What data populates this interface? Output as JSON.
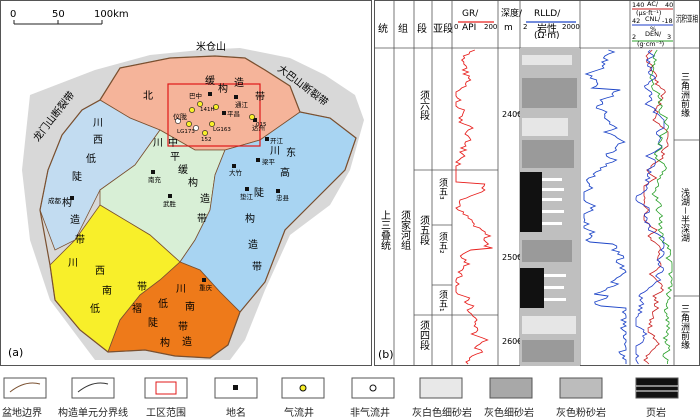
{
  "map": {
    "panel_label": "(a)",
    "scale": {
      "ticks": [
        "0",
        "50",
        "100km"
      ]
    },
    "regions": {
      "north": [
        "北",
        "缓",
        "构",
        "造",
        "带"
      ],
      "west": [
        "川",
        "西",
        "低",
        "陡",
        "构",
        "造",
        "带"
      ],
      "center": [
        "川",
        "中",
        "平",
        "缓",
        "构",
        "造",
        "带"
      ],
      "east": [
        "川",
        "东",
        "高",
        "陡",
        "构",
        "造",
        "带"
      ],
      "southwest": [
        "川",
        "西",
        "南",
        "低",
        "褶",
        "带"
      ],
      "south": [
        "川",
        "南",
        "低",
        "陡",
        "构",
        "造",
        "带"
      ]
    },
    "mountains": {
      "micang": "米仓山",
      "longmen": "龙门山断裂带",
      "daba": "大巴山断裂带"
    },
    "cities": [
      "巴中",
      "通江",
      "平昌",
      "达州",
      "开江",
      "梁平",
      "大竹",
      "垫江",
      "忠县",
      "南充",
      "武胜",
      "成都",
      "重庆"
    ],
    "wells": [
      "仪陇",
      "LG173",
      "141H",
      "LG163",
      "152",
      "015"
    ]
  },
  "log": {
    "panel_label": "(b)",
    "headers": {
      "system": "统",
      "group": "组",
      "member": "段",
      "submember": "亚段",
      "gr_title": "GR/",
      "gr_unit": "API",
      "gr_min": "0",
      "gr_max": "200",
      "depth_title": "深度/",
      "depth_unit": "m",
      "lithology": "岩性",
      "rlld_title": "RLLD/",
      "rlld_unit": "(Ω·m)",
      "rlld_min": "2",
      "rlld_max": "2000",
      "ac_title": "AC/",
      "ac_unit": "(μs·ft⁻¹)",
      "ac_min": "140",
      "ac_max": "40",
      "cnl_title": "CNL/",
      "cnl_unit": "%",
      "cnl_min": "42",
      "cnl_max": "-18",
      "den_title": "DEN/",
      "den_unit": "(g·cm⁻³)",
      "den_min": "2",
      "den_max": "3",
      "facies": "沉积亚相"
    },
    "system": "上三叠统",
    "group": "须家河组",
    "members": [
      "须六段",
      "须五段",
      "须四段"
    ],
    "submembers": [
      "须五₃",
      "须五₂",
      "须五₁"
    ],
    "depths": [
      "2400",
      "2500",
      "2600"
    ],
    "facies": [
      "三角洲前缘",
      "浅湖－半深湖",
      "三角洲前缘"
    ]
  },
  "legend": {
    "items": [
      "盆地边界",
      "构造单元分界线",
      "工区范围",
      "地名",
      "气流井",
      "非气流井",
      "灰白色细砂岩",
      "灰色细砂岩",
      "灰色粉砂岩",
      "页岩"
    ]
  },
  "colors": {
    "north": "#f5b49a",
    "west": "#c2dcf1",
    "center": "#d8efd6",
    "east": "#a8d4f2",
    "southwest": "#f8ef2a",
    "south": "#ee7a1a",
    "outer": "#d8d8d8",
    "gr_curve": "#e8201e",
    "rlld_curve": "#1e46c8",
    "ac_curve": "#c81e1e",
    "cnl_curve": "#1e3cc8",
    "den_curve": "#28a028"
  }
}
